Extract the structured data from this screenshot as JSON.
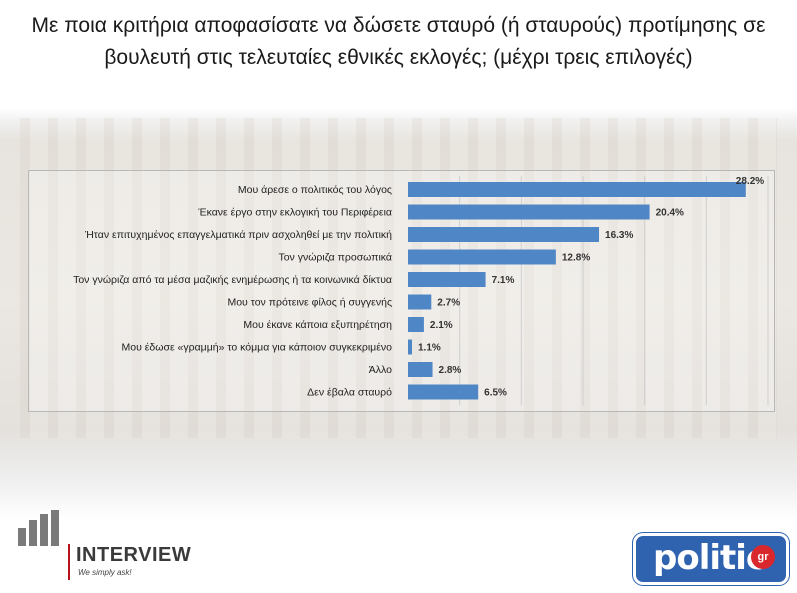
{
  "title": "Με ποια κριτήρια αποφασίσατε να δώσετε σταυρό (ή σταυρούς) προτίμησης σε βουλευτή στις τελευταίες εθνικές εκλογές; (μέχρι τρεις επιλογές)",
  "colors": {
    "bar": "#4f86c6",
    "logo_right_bg": "#2f63b0",
    "logo_right_badge": "#d9272e",
    "logo_left_accent": "#b5121b"
  },
  "chart_data": {
    "type": "bar",
    "orientation": "horizontal",
    "categories": [
      "Μου άρεσε ο πολιτικός του λόγος",
      "Έκανε έργο στην εκλογική του Περιφέρεια",
      "Ήταν επιτυχημένος επαγγελματικά πριν ασχοληθεί με την πολιτική",
      "Τον γνώριζα προσωπικά",
      "Τον γνώριζα από τα μέσα μαζικής ενημέρωσης ή τα κοινωνικά δίκτυα",
      "Μου τον πρότεινε φίλος ή συγγενής",
      "Μου έκανε κάποια εξυπηρέτηση",
      "Μου έδωσε «γραμμή» το κόμμα για κάποιον συγκεκριμένο",
      "Άλλο",
      "Δεν έβαλα σταυρό"
    ],
    "values": [
      28.2,
      20.4,
      16.3,
      12.8,
      7.1,
      2.7,
      2.1,
      1.1,
      2.8,
      6.5
    ],
    "value_labels": [
      "28.2%",
      "20.4%",
      "16.3%",
      "12.8%",
      "7.1%",
      "2.7%",
      "2.1%",
      "1.1%",
      "2.8%",
      "6.5%"
    ],
    "xlim": [
      0,
      30
    ],
    "grid": true,
    "legend": "none",
    "xlabel": "",
    "ylabel": ""
  },
  "logos": {
    "left_name": "INTERVIEW",
    "left_tagline": "We simply ask!",
    "right_word": "politic",
    "right_badge": "gr"
  }
}
